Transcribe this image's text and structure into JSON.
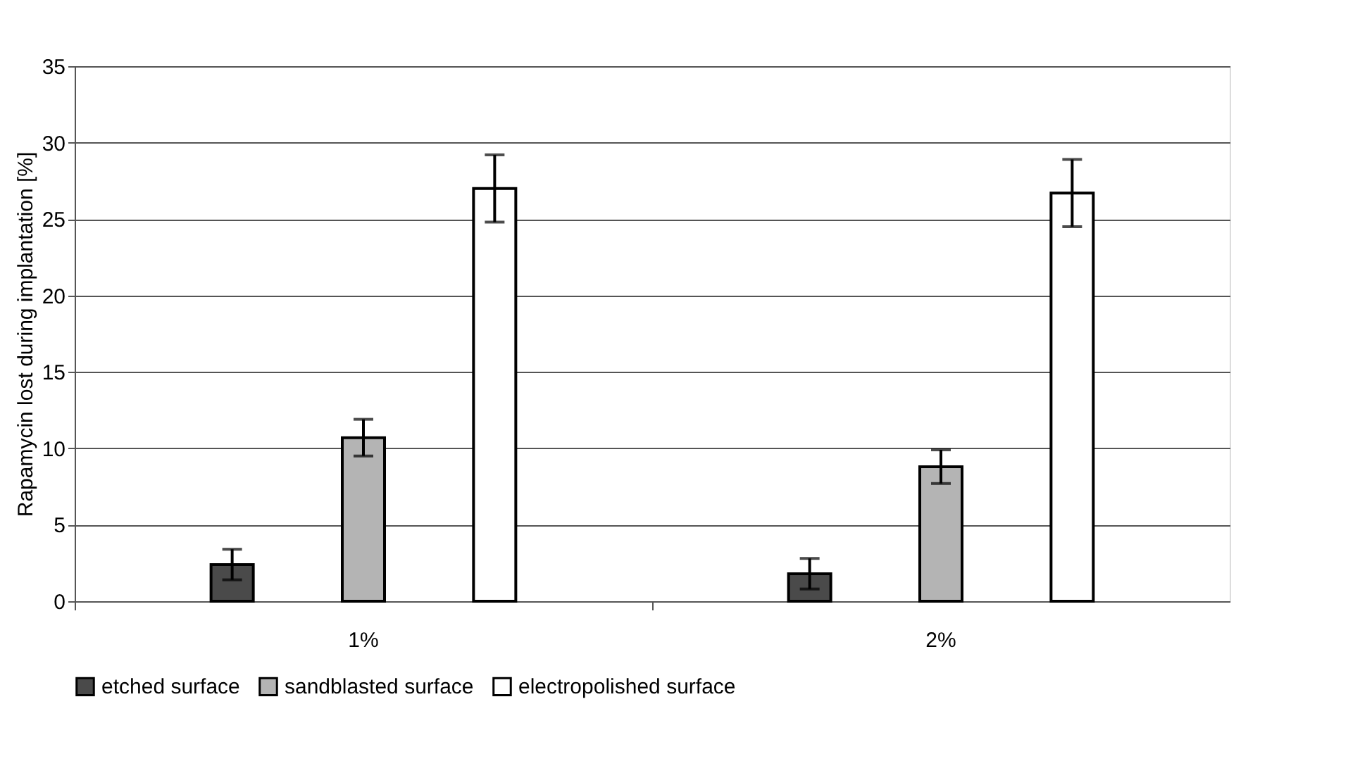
{
  "chart_data": {
    "type": "bar",
    "ylabel": "Rapamycin lost during implantation [%]",
    "categories": [
      "1%",
      "2%"
    ],
    "series": [
      {
        "name": "etched surface",
        "color": "#4a4a4a",
        "values": [
          2.4,
          1.8
        ],
        "errors": [
          1.0,
          1.0
        ]
      },
      {
        "name": "sandblasted surface",
        "color": "#b4b4b4",
        "values": [
          10.7,
          8.8
        ],
        "errors": [
          1.2,
          1.1
        ]
      },
      {
        "name": "electropolished surface",
        "color": "#ffffff",
        "values": [
          27.0,
          26.7
        ],
        "errors": [
          2.2,
          2.2
        ]
      }
    ],
    "ylim": [
      0,
      35
    ],
    "yticks": [
      0,
      5,
      10,
      15,
      20,
      25,
      30,
      35
    ],
    "grid": "y",
    "legend": "bottom"
  }
}
